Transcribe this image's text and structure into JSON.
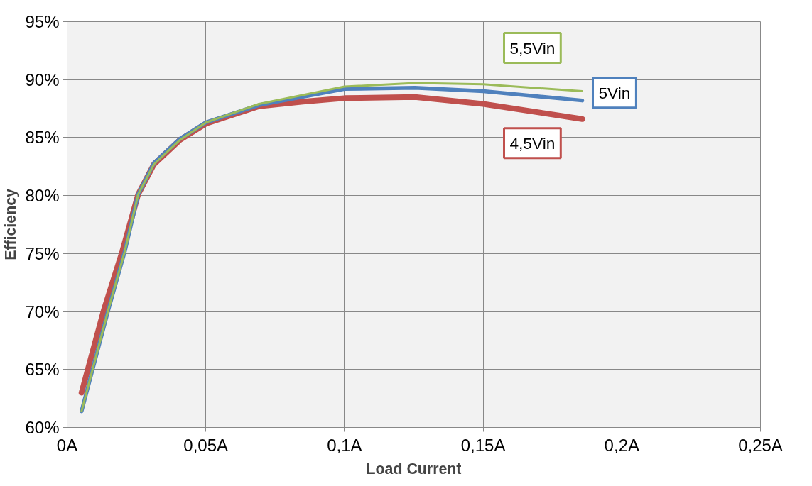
{
  "chart_data": {
    "type": "line",
    "xlabel": "Load Current",
    "ylabel": "Efficiency",
    "xlim": [
      0,
      0.25
    ],
    "ylim": [
      60,
      95
    ],
    "xticks": [
      {
        "value": 0,
        "label": "0A"
      },
      {
        "value": 0.05,
        "label": "0,05A"
      },
      {
        "value": 0.1,
        "label": "0,1A"
      },
      {
        "value": 0.15,
        "label": "0,15A"
      },
      {
        "value": 0.2,
        "label": "0,2A"
      },
      {
        "value": 0.25,
        "label": "0,25A"
      }
    ],
    "yticks": [
      {
        "value": 60,
        "label": "60%"
      },
      {
        "value": 65,
        "label": "65%"
      },
      {
        "value": 70,
        "label": "70%"
      },
      {
        "value": 75,
        "label": "75%"
      },
      {
        "value": 80,
        "label": "80%"
      },
      {
        "value": 85,
        "label": "85%"
      },
      {
        "value": 90,
        "label": "90%"
      },
      {
        "value": 95,
        "label": "95%"
      }
    ],
    "grid": true,
    "marker": "none",
    "line_style": "solid",
    "series": [
      {
        "name": "5,5Vin",
        "color": "#9bbb59",
        "x": [
          0.0052,
          0.0148,
          0.0208,
          0.0256,
          0.0313,
          0.0407,
          0.05,
          0.0692,
          0.1,
          0.1254,
          0.15,
          0.1857
        ],
        "values": [
          61.4,
          70.1,
          75.2,
          80.1,
          82.7,
          84.8,
          86.3,
          87.9,
          89.4,
          89.7,
          89.6,
          89.0
        ]
      },
      {
        "name": "5Vin",
        "color": "#4f81bd",
        "x": [
          0.0052,
          0.0148,
          0.0208,
          0.0256,
          0.0313,
          0.0407,
          0.05,
          0.0692,
          0.1,
          0.1254,
          0.15,
          0.1857
        ],
        "values": [
          61.4,
          70.1,
          75.2,
          80.1,
          82.8,
          84.9,
          86.3,
          87.8,
          89.2,
          89.3,
          89.0,
          88.2
        ]
      },
      {
        "name": "4,5Vin",
        "color": "#c0504d",
        "x": [
          0.0052,
          0.0132,
          0.0199,
          0.0256,
          0.0313,
          0.0407,
          0.05,
          0.0692,
          0.085,
          0.1,
          0.1254,
          0.15,
          0.1857
        ],
        "values": [
          63.0,
          70.1,
          75.2,
          80.1,
          82.7,
          84.8,
          86.2,
          87.7,
          88.1,
          88.4,
          88.5,
          87.9,
          86.6
        ]
      }
    ]
  }
}
